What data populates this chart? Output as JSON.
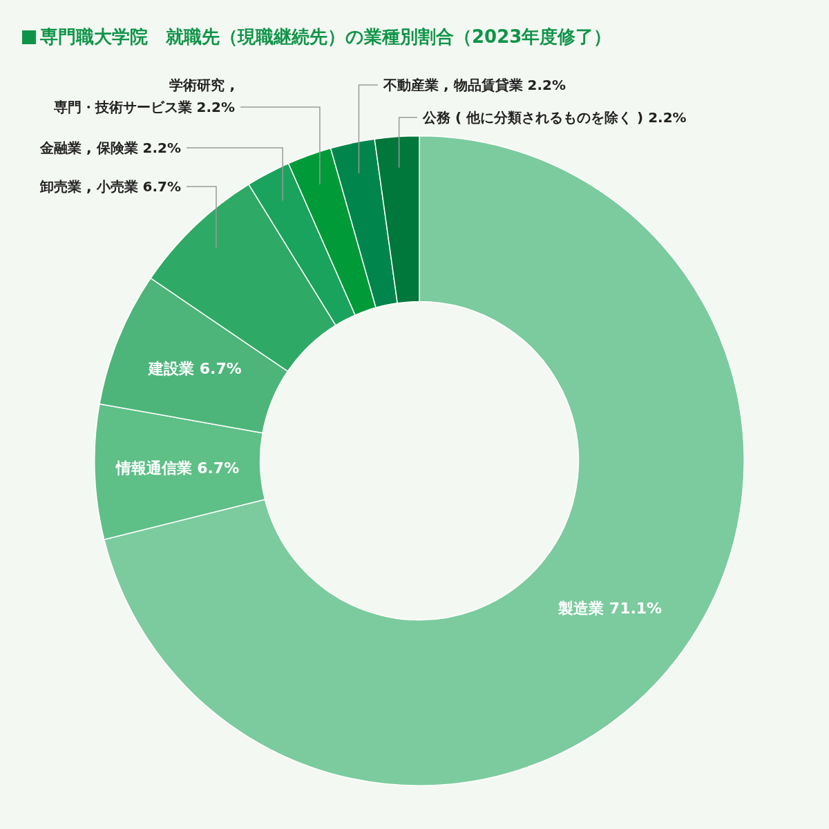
{
  "chart_data": {
    "type": "donut",
    "title": "専門職大学院　就職先（現職継続先）の業種別割合（2023年度修了）",
    "categories": [
      "製造業",
      "情報通信業",
      "建設業",
      "卸売業 , 小売業",
      "金融業 , 保険業",
      "学術研究 ,\n専門・技術サービス業",
      "不動産業 , 物品賃貸業",
      "公務 ( 他に分類されるものを除く )"
    ],
    "values": [
      71.1,
      6.7,
      6.7,
      6.7,
      2.2,
      2.2,
      2.2,
      2.2
    ],
    "value_labels": [
      "71.1%",
      "6.7%",
      "6.7%",
      "6.7%",
      "2.2%",
      "2.2%",
      "2.2%",
      "2.2%"
    ],
    "colors": [
      "#7bcb9e",
      "#5ebf87",
      "#4db57a",
      "#2faa66",
      "#1aa35c",
      "#009a38",
      "#00864c",
      "#00773b"
    ],
    "legend": false
  }
}
